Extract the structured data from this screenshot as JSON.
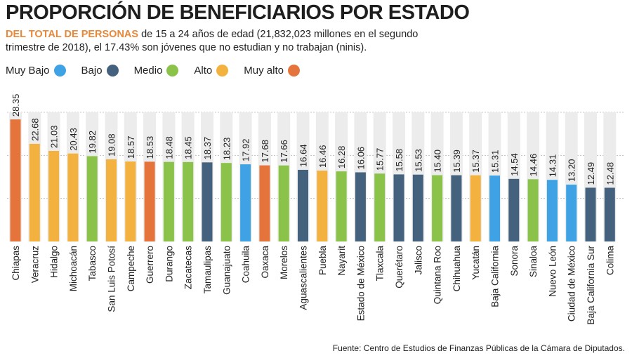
{
  "title": "PROPORCIÓN DE BENEFICIARIOS POR ESTADO",
  "subtitle_highlight": "DEL TOTAL DE PERSONAS",
  "subtitle_rest": " de 15 a 24 años de edad (21,832,023 millones en el segundo trimestre de 2018), el 17.43% son jóvenes que no estudian y no trabajan (ninis).",
  "legend": [
    {
      "label": "Muy Bajo",
      "color": "#3ea2e4"
    },
    {
      "label": "Bajo",
      "color": "#44627d"
    },
    {
      "label": "Medio",
      "color": "#8bc34a"
    },
    {
      "label": "Alto",
      "color": "#f3b23f"
    },
    {
      "label": "Muy alto",
      "color": "#e5743c"
    }
  ],
  "source": "Fuente: Centro de Estudios de Finanzas Públicas de la Cámara de Diputados.",
  "chart_data": {
    "type": "bar",
    "title": "PROPORCIÓN DE BENEFICIARIOS POR ESTADO",
    "ylim": [
      0,
      30
    ],
    "grid": true,
    "categories": [
      "Chiapas",
      "Veracruz",
      "Hidalgo",
      "Michoacán",
      "Tabasco",
      "San Luis Potosí",
      "Campeche",
      "Guerrero",
      "Durango",
      "Zacatecas",
      "Tamaulipas",
      "Guanajuato",
      "Coahuila",
      "Oaxaca",
      "Morelos",
      "Aguascalientes",
      "Puebla",
      "Nayarit",
      "Estado de México",
      "Tlaxcala",
      "Querétaro",
      "Jalisco",
      "Quintana Roo",
      "Chihuahua",
      "Yucatán",
      "Baja California",
      "Sonora",
      "Sinaloa",
      "Nuevo León",
      "Ciudad de México",
      "Baja California Sur",
      "Colima"
    ],
    "values": [
      28.35,
      22.68,
      21.03,
      20.43,
      19.82,
      19.08,
      18.57,
      18.53,
      18.48,
      18.45,
      18.37,
      18.23,
      17.92,
      17.68,
      17.66,
      16.64,
      16.46,
      16.28,
      16.06,
      15.77,
      15.58,
      15.53,
      15.4,
      15.39,
      15.37,
      15.31,
      14.54,
      14.46,
      14.31,
      13.2,
      12.49,
      12.48
    ],
    "value_labels": [
      "28.35",
      "22.68",
      "21.03",
      "20.43",
      "19.82",
      "19.08",
      "18.57",
      "18.53",
      "18.48",
      "18.45",
      "18.37",
      "18.23",
      "17.92",
      "17.68",
      "17.66",
      "16.64",
      "16.46",
      "16.28",
      "16.06",
      "15.77",
      "15.58",
      "15.53",
      "15.40",
      "15.39",
      "15.37",
      "15.31",
      "14.54",
      "14.46",
      "14.31",
      "13.20",
      "12.49",
      "12.48"
    ],
    "levels": [
      "Muy alto",
      "Alto",
      "Alto",
      "Alto",
      "Medio",
      "Alto",
      "Alto",
      "Muy alto",
      "Medio",
      "Medio",
      "Bajo",
      "Medio",
      "Muy Bajo",
      "Muy alto",
      "Medio",
      "Bajo",
      "Alto",
      "Medio",
      "Bajo",
      "Medio",
      "Bajo",
      "Bajo",
      "Medio",
      "Bajo",
      "Alto",
      "Muy Bajo",
      "Bajo",
      "Medio",
      "Muy Bajo",
      "Muy Bajo",
      "Bajo",
      "Bajo"
    ]
  }
}
